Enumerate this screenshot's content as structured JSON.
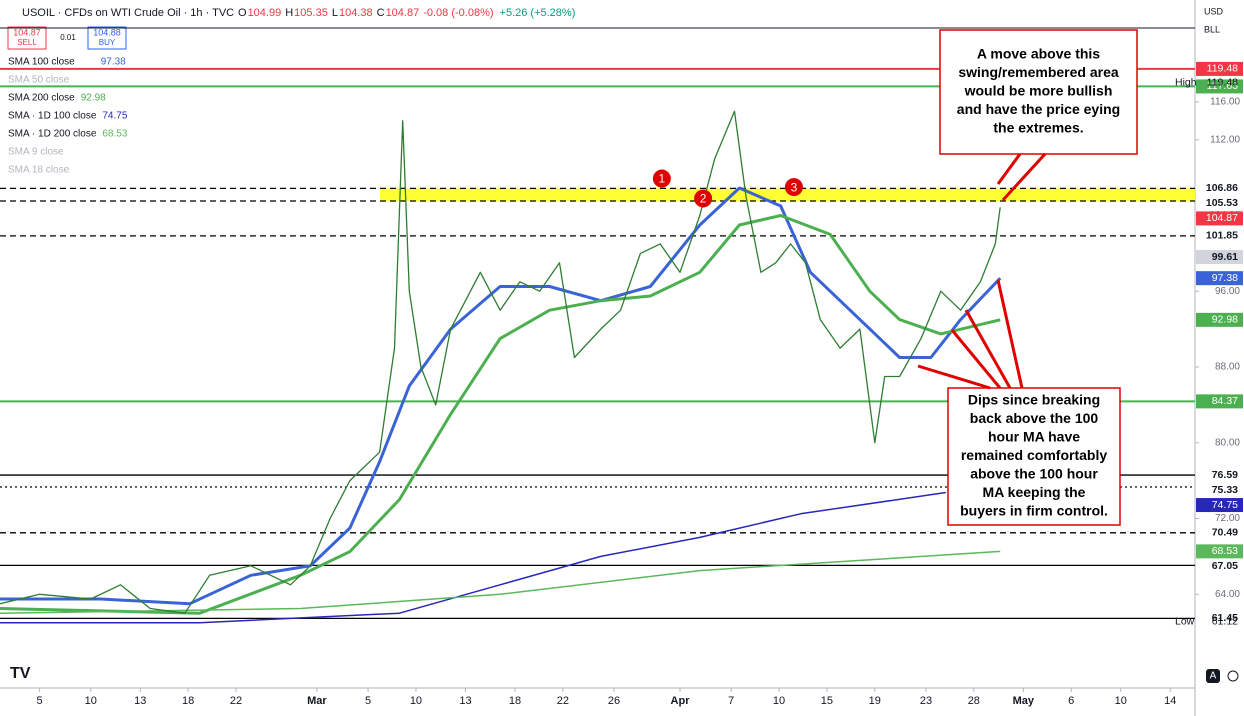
{
  "chart_data": {
    "type": "line",
    "symbol": "USOIL · CFDs on WTI Crude Oil · 1h · TVC",
    "ohlc": [
      {
        "key": "O",
        "value": "104.99"
      },
      {
        "key": "H",
        "value": "105.35"
      },
      {
        "key": "L",
        "value": "104.38"
      },
      {
        "key": "C",
        "value": "104.87"
      }
    ],
    "change": "-0.08 (-0.08%)",
    "change_day": "+5.26 (+5.28%)",
    "trade": {
      "sell_price": "104.87",
      "sell": "SELL",
      "spread": "0.01",
      "buy_price": "104.88",
      "buy": "BUY"
    },
    "currency": "USD",
    "unit": "BLL",
    "xlim": [
      0,
      72.4
    ],
    "ylim": [
      54.1,
      123.8
    ],
    "xticks": [
      {
        "value": 2.4,
        "label": "5"
      },
      {
        "value": 5.5,
        "label": "10"
      },
      {
        "value": 8.5,
        "label": "13"
      },
      {
        "value": 11.4,
        "label": "18"
      },
      {
        "value": 14.3,
        "label": "22"
      },
      {
        "value": 19.2,
        "label": "Mar"
      },
      {
        "value": 22.3,
        "label": "5"
      },
      {
        "value": 25.2,
        "label": "10"
      },
      {
        "value": 28.2,
        "label": "13"
      },
      {
        "value": 31.2,
        "label": "18"
      },
      {
        "value": 34.1,
        "label": "22"
      },
      {
        "value": 37.2,
        "label": "26"
      },
      {
        "value": 41.2,
        "label": "Apr"
      },
      {
        "value": 44.3,
        "label": "7"
      },
      {
        "value": 47.2,
        "label": "10"
      },
      {
        "value": 50.1,
        "label": "15"
      },
      {
        "value": 53.0,
        "label": "19"
      },
      {
        "value": 56.1,
        "label": "23"
      },
      {
        "value": 59.0,
        "label": "28"
      },
      {
        "value": 62.0,
        "label": "May"
      },
      {
        "value": 64.9,
        "label": "6"
      },
      {
        "value": 67.9,
        "label": "10"
      },
      {
        "value": 70.9,
        "label": "14"
      }
    ],
    "yticks": [
      {
        "value": 116,
        "label": "116.00"
      },
      {
        "value": 112,
        "label": "112.00"
      },
      {
        "value": 104,
        "label": "104.00"
      },
      {
        "value": 96,
        "label": "96.00"
      },
      {
        "value": 88,
        "label": "88.00"
      },
      {
        "value": 80,
        "label": "80.00"
      },
      {
        "value": 72,
        "label": "72.00"
      },
      {
        "value": 64,
        "label": "64.00"
      }
    ],
    "price": {
      "color": "#2e7d32",
      "x": [
        0,
        2.4,
        5.5,
        7.3,
        9.1,
        11.2,
        12.7,
        15.2,
        17.6,
        18.8,
        20,
        21.2,
        23,
        23.9,
        24.4,
        24.8,
        25.5,
        26.4,
        27.3,
        27.9,
        29.1,
        30.3,
        31.5,
        32.7,
        33.9,
        34.8,
        36.4,
        37.6,
        38.8,
        40,
        41.2,
        42.4,
        43.3,
        44.5,
        45.2,
        46.1,
        47,
        47.9,
        48.8,
        49.7,
        50.9,
        52.1,
        53,
        53.6,
        54.5,
        55.8,
        57,
        58.2,
        59.4,
        60.3,
        60.6
      ],
      "values": [
        63,
        64,
        63.5,
        65,
        62.5,
        62,
        66,
        67,
        65,
        67,
        72,
        76,
        79,
        90,
        114,
        96,
        88,
        84,
        92,
        94,
        98,
        94,
        97,
        96,
        99,
        89,
        92,
        94,
        100,
        101,
        98,
        104,
        110,
        115,
        106,
        98,
        99,
        101,
        99,
        93,
        90,
        92,
        80,
        87,
        87,
        91,
        96,
        94,
        97,
        101,
        104.87
      ]
    },
    "series": [
      {
        "name": "SMA 100 close",
        "color": "#3a63d6",
        "width": 3,
        "x": [
          0,
          6.1,
          11.5,
          15.2,
          18.8,
          21.2,
          23,
          24.8,
          27.3,
          30.3,
          33.3,
          36.4,
          39.4,
          42.4,
          44.8,
          47.3,
          49.1,
          52.1,
          54.5,
          56.4,
          58.2,
          60.6
        ],
        "values": [
          63.5,
          63.5,
          63,
          66,
          67,
          71,
          78,
          86,
          92,
          96.5,
          96.5,
          95,
          96.5,
          103,
          106.9,
          105,
          98,
          93,
          89,
          89,
          93,
          97.38
        ]
      },
      {
        "name": "SMA 200 close",
        "color": "#4caf50",
        "width": 3,
        "x": [
          0,
          12.1,
          18.2,
          21.2,
          24.2,
          27.3,
          30.3,
          33.3,
          36.4,
          39.4,
          42.4,
          44.8,
          47.3,
          50.3,
          52.7,
          54.5,
          57,
          60.6
        ],
        "values": [
          62.5,
          62,
          66,
          68.5,
          74,
          83,
          91,
          94,
          95,
          95.5,
          98,
          103,
          104,
          102,
          96,
          93,
          91.5,
          92.98
        ]
      },
      {
        "name": "SMA · 1D 100 close",
        "color": "#2828b8",
        "width": 1.5,
        "x": [
          0,
          12.1,
          24.2,
          30.3,
          36.4,
          42.4,
          48.5,
          57.3
        ],
        "values": [
          61,
          61,
          62,
          65,
          68,
          70,
          72.5,
          74.75
        ]
      },
      {
        "name": "SMA · 1D 200 close",
        "color": "#5cb85c",
        "width": 1.5,
        "x": [
          0,
          18.2,
          30.3,
          42.4,
          60.6
        ],
        "values": [
          62,
          62.5,
          64,
          66.5,
          68.53
        ]
      }
    ],
    "hidden_indicators": [
      "SMA 50 close",
      "SMA 9 close",
      "SMA 18 close"
    ],
    "zone": {
      "from": 105.53,
      "to": 106.86,
      "color": "#ffff33"
    },
    "levels": [
      {
        "value": 119.48,
        "color": "#f23645",
        "line": "solid"
      },
      {
        "value": 117.63,
        "color": "#4caf50",
        "line": "solid"
      },
      {
        "value": 106.86,
        "color": "#000000",
        "line": "dashed"
      },
      {
        "value": 105.53,
        "color": "#000000",
        "line": "dashed"
      },
      {
        "value": 104.87,
        "color": "#f23645",
        "line": "none"
      },
      {
        "value": 101.85,
        "color": "#000000",
        "line": "dashed"
      },
      {
        "value": 99.61,
        "color": "#d1d4dc",
        "line": "none"
      },
      {
        "value": 97.38,
        "color": "#3a63d6",
        "line": "none"
      },
      {
        "value": 92.98,
        "color": "#4caf50",
        "line": "none"
      },
      {
        "value": 84.37,
        "color": "#4caf50",
        "line": "solid"
      },
      {
        "value": 76.59,
        "color": "#000000",
        "line": "solid"
      },
      {
        "value": 75.33,
        "color": "#000000",
        "line": "dotted"
      },
      {
        "value": 74.75,
        "color": "#2828b8",
        "line": "none"
      },
      {
        "value": 70.49,
        "color": "#000000",
        "line": "dashed"
      },
      {
        "value": 68.53,
        "color": "#5cb85c",
        "line": "none"
      },
      {
        "value": 67.05,
        "color": "#000000",
        "line": "solid"
      },
      {
        "value": 61.45,
        "color": "#000000",
        "line": "solid"
      }
    ],
    "high": {
      "label": "High",
      "value": 119.48
    },
    "low": {
      "label": "Low",
      "value": 61.12
    },
    "markers": [
      {
        "label": "1",
        "x": 40.1,
        "y": 107.9
      },
      {
        "label": "2",
        "x": 42.6,
        "y": 105.8
      },
      {
        "label": "3",
        "x": 48.1,
        "y": 107.0
      }
    ],
    "annotations": [
      {
        "lines": [
          "A move above this",
          "swing/remembered area",
          "would be more bullish",
          "and have the price eying",
          "the extremes."
        ]
      },
      {
        "lines": [
          "Dips since breaking",
          "back above the 100",
          "hour MA have",
          "remained comfortably",
          "above the 100 hour",
          "MA keeping the",
          "buyers in firm control."
        ]
      }
    ]
  }
}
